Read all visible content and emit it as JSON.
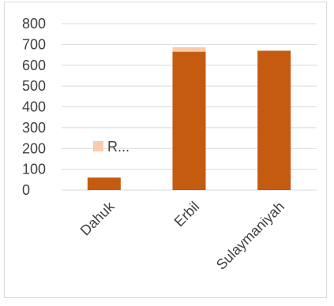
{
  "chart_data": {
    "type": "bar",
    "stacked": true,
    "categories": [
      "Dahuk",
      "Erbil",
      "Sulaymaniyah"
    ],
    "series": [
      {
        "name": "",
        "values": [
          60,
          665,
          670
        ],
        "color": "#c55a11"
      },
      {
        "name": "R...",
        "values": [
          0,
          22,
          0
        ],
        "color": "#f8cbad"
      }
    ],
    "title": "",
    "xlabel": "",
    "ylabel": "",
    "ylim": [
      0,
      800
    ],
    "yticks": [
      0,
      100,
      200,
      300,
      400,
      500,
      600,
      700,
      800
    ],
    "grid": true,
    "legend": {
      "placement": "inside-left",
      "label": "R..."
    }
  }
}
